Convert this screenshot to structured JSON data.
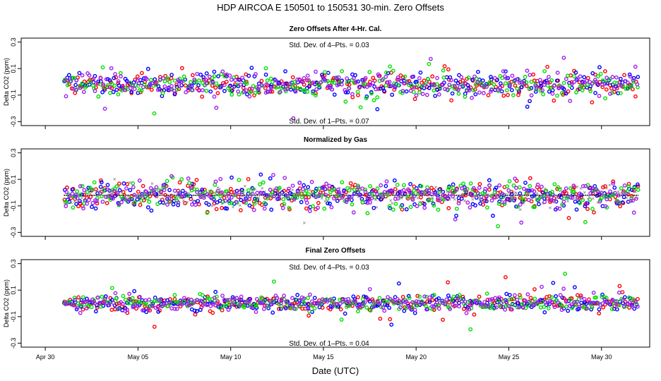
{
  "figure": {
    "title": "HDP    AIRCOA E    150501 to 150531    30-min. Zero Offsets",
    "xlabel": "Date (UTC)"
  },
  "colors": {
    "red": "#ff0000",
    "blue": "#0000ff",
    "green": "#00e000",
    "purple": "#a020f0",
    "black": "#000000",
    "gray": "#888888"
  },
  "chart_data": [
    {
      "type": "scatter",
      "title": "Zero Offsets After 4-Hr. Cal.",
      "ylabel": "Delta CO2 (ppm)",
      "ylim": [
        -0.33,
        0.33
      ],
      "yticks": [
        -0.3,
        -0.1,
        0.1,
        0.3
      ],
      "ytick_labels": [
        "-0.3",
        "-0.1",
        "0.1",
        "0.3"
      ],
      "annotation_top": "Std. Dev. of 4–Pts. = 0.03",
      "annotation_bottom": "Std. Dev. of 1–Pts. = 0.07",
      "center": -0.02,
      "noise_sd": 0.045,
      "series": [
        {
          "name": "red",
          "color": "#ff0000",
          "marker": "o"
        },
        {
          "name": "blue",
          "color": "#0000ff",
          "marker": "o"
        },
        {
          "name": "green",
          "color": "#00e000",
          "marker": "o"
        },
        {
          "name": "purple",
          "color": "#a020f0",
          "marker": "o"
        }
      ]
    },
    {
      "type": "scatter",
      "title": "Normalized by Gas",
      "ylabel": "Delta CO2 (ppm)",
      "ylim": [
        -0.33,
        0.33
      ],
      "yticks": [
        -0.3,
        -0.1,
        0.1,
        0.3
      ],
      "ytick_labels": [
        "-0.3",
        "-0.1",
        "0.1",
        "0.3"
      ],
      "center": -0.02,
      "noise_sd": 0.05,
      "reference_line": -0.02,
      "series": [
        {
          "name": "red",
          "color": "#ff0000",
          "marker": "o"
        },
        {
          "name": "blue",
          "color": "#0000ff",
          "marker": "o"
        },
        {
          "name": "green",
          "color": "#00e000",
          "marker": "o"
        },
        {
          "name": "purple",
          "color": "#a020f0",
          "marker": "o"
        },
        {
          "name": "gray",
          "color": "#888888",
          "marker": "x"
        }
      ]
    },
    {
      "type": "scatter",
      "title": "Final Zero Offsets",
      "ylabel": "Delta CO2 (ppm)",
      "ylim": [
        -0.33,
        0.33
      ],
      "yticks": [
        -0.3,
        -0.1,
        0.1,
        0.3
      ],
      "ytick_labels": [
        "-0.3",
        "-0.1",
        "0.1",
        "0.3"
      ],
      "annotation_top": "Std. Dev. of 4–Pts. = 0.03",
      "annotation_bottom": "Std. Dev. of 1–Pts. = 0.04",
      "center": 0.0,
      "noise_sd": 0.03,
      "series": [
        {
          "name": "red",
          "color": "#ff0000",
          "marker": "o"
        },
        {
          "name": "blue",
          "color": "#0000ff",
          "marker": "o"
        },
        {
          "name": "green",
          "color": "#00e000",
          "marker": "o"
        },
        {
          "name": "purple",
          "color": "#a020f0",
          "marker": "o"
        }
      ]
    }
  ],
  "x_axis": {
    "range_days": [
      -1.3,
      32.6
    ],
    "data_range_days": [
      1.0,
      32.0
    ],
    "ticks_days": [
      0,
      5,
      10,
      15,
      20,
      25,
      30
    ],
    "tick_labels": [
      "Apr 30",
      "May 05",
      "May 10",
      "May 15",
      "May 20",
      "May 25",
      "May 30"
    ]
  }
}
